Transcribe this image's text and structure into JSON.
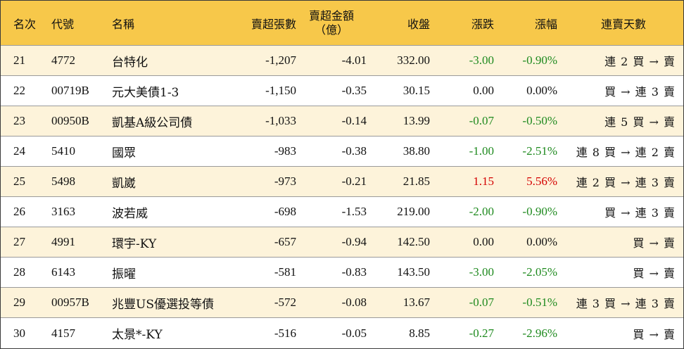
{
  "headers": {
    "rank": "名次",
    "code": "代號",
    "name": "名稱",
    "net_sell_lots": "賣超張數",
    "net_sell_amount_line1": "賣超金額",
    "net_sell_amount_line2": "（億）",
    "close": "收盤",
    "change": "漲跌",
    "change_pct": "漲幅",
    "consecutive_days": "連賣天數"
  },
  "colors": {
    "header_bg": "#f7c84a",
    "odd_row_bg": "#fdf3da",
    "up": "#d40000",
    "down": "#1f8a1f"
  },
  "rows": [
    {
      "rank": "21",
      "code": "4772",
      "name": "台特化",
      "lots": "-1,207",
      "amount": "-4.01",
      "close": "332.00",
      "change": "-3.00",
      "pct": "-0.90%",
      "trend": "down",
      "days": "連 2 買 → 賣"
    },
    {
      "rank": "22",
      "code": "00719B",
      "name": "元大美債1-3",
      "lots": "-1,150",
      "amount": "-0.35",
      "close": "30.15",
      "change": "0.00",
      "pct": "0.00%",
      "trend": "flat",
      "days": "買 → 連 3 賣"
    },
    {
      "rank": "23",
      "code": "00950B",
      "name": "凱基A級公司債",
      "lots": "-1,033",
      "amount": "-0.14",
      "close": "13.99",
      "change": "-0.07",
      "pct": "-0.50%",
      "trend": "down",
      "days": "連 5 買 → 賣"
    },
    {
      "rank": "24",
      "code": "5410",
      "name": "國眾",
      "lots": "-983",
      "amount": "-0.38",
      "close": "38.80",
      "change": "-1.00",
      "pct": "-2.51%",
      "trend": "down",
      "days": "連 8 買 → 連 2 賣"
    },
    {
      "rank": "25",
      "code": "5498",
      "name": "凱崴",
      "lots": "-973",
      "amount": "-0.21",
      "close": "21.85",
      "change": "1.15",
      "pct": "5.56%",
      "trend": "up",
      "days": "連 2 買 → 連 3 賣"
    },
    {
      "rank": "26",
      "code": "3163",
      "name": "波若威",
      "lots": "-698",
      "amount": "-1.53",
      "close": "219.00",
      "change": "-2.00",
      "pct": "-0.90%",
      "trend": "down",
      "days": "買 → 連 3 賣"
    },
    {
      "rank": "27",
      "code": "4991",
      "name": "環宇-KY",
      "lots": "-657",
      "amount": "-0.94",
      "close": "142.50",
      "change": "0.00",
      "pct": "0.00%",
      "trend": "flat",
      "days": "買 → 賣"
    },
    {
      "rank": "28",
      "code": "6143",
      "name": "振曜",
      "lots": "-581",
      "amount": "-0.83",
      "close": "143.50",
      "change": "-3.00",
      "pct": "-2.05%",
      "trend": "down",
      "days": "買 → 賣"
    },
    {
      "rank": "29",
      "code": "00957B",
      "name": "兆豐US優選投等債",
      "lots": "-572",
      "amount": "-0.08",
      "close": "13.67",
      "change": "-0.07",
      "pct": "-0.51%",
      "trend": "down",
      "days": "連 3 買 → 連 3 賣"
    },
    {
      "rank": "30",
      "code": "4157",
      "name": "太景*-KY",
      "lots": "-516",
      "amount": "-0.05",
      "close": "8.85",
      "change": "-0.27",
      "pct": "-2.96%",
      "trend": "down",
      "days": "買 → 賣"
    }
  ]
}
